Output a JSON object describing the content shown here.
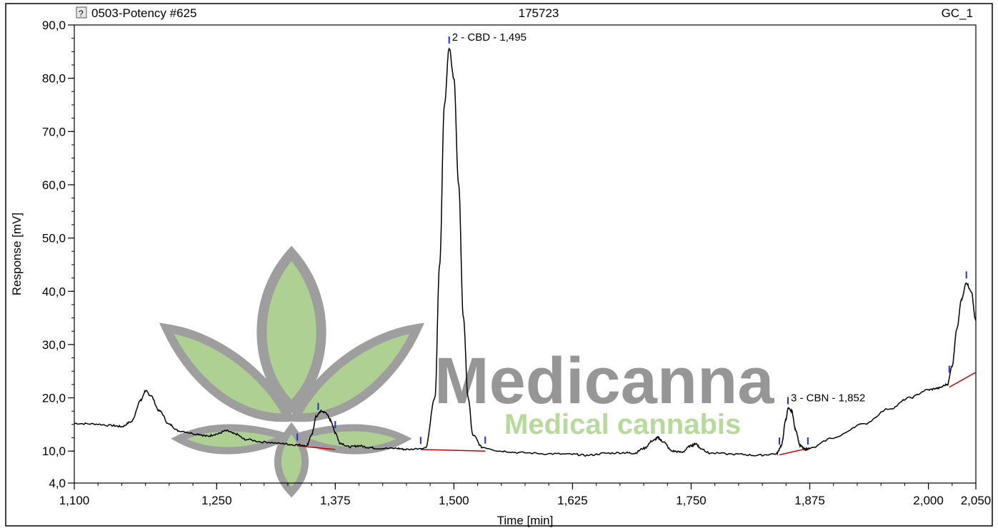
{
  "header": {
    "title": "0503-Potency #625",
    "center": "175723",
    "right": "GC_1"
  },
  "watermark": {
    "brand": "Medicanna",
    "tagline": "Medical cannabis"
  },
  "chart_data": {
    "type": "line",
    "xlabel": "Time [min]",
    "ylabel": "Response [mV]",
    "xlim": [
      1.1,
      2.05
    ],
    "ylim": [
      4.0,
      90.0
    ],
    "x_ticks": [
      "1,100",
      "1,250",
      "1,375",
      "1,500",
      "1,625",
      "1,750",
      "1,875",
      "2,000",
      "2,050"
    ],
    "x_tick_values": [
      1.1,
      1.25,
      1.375,
      1.5,
      1.625,
      1.75,
      1.875,
      2.0,
      2.05
    ],
    "y_ticks": [
      "4,0",
      "10,0",
      "20,0",
      "30,0",
      "40,0",
      "50,0",
      "60,0",
      "70,0",
      "80,0",
      "90,0"
    ],
    "y_tick_values": [
      4,
      10,
      20,
      30,
      40,
      50,
      60,
      70,
      80,
      90
    ],
    "series": [
      {
        "color": "#000000",
        "points": [
          [
            1.1,
            15.2
          ],
          [
            1.12,
            15.1
          ],
          [
            1.14,
            14.8
          ],
          [
            1.15,
            14.6
          ],
          [
            1.16,
            15.5
          ],
          [
            1.17,
            19.5
          ],
          [
            1.175,
            21.3
          ],
          [
            1.18,
            20.5
          ],
          [
            1.19,
            17.5
          ],
          [
            1.2,
            15.0
          ],
          [
            1.21,
            13.8
          ],
          [
            1.23,
            13.2
          ],
          [
            1.24,
            12.8
          ],
          [
            1.25,
            13.2
          ],
          [
            1.26,
            13.8
          ],
          [
            1.27,
            13.2
          ],
          [
            1.28,
            12.2
          ],
          [
            1.3,
            11.7
          ],
          [
            1.32,
            11.4
          ],
          [
            1.33,
            11.2
          ],
          [
            1.345,
            11.1
          ],
          [
            1.35,
            13.0
          ],
          [
            1.355,
            16.5
          ],
          [
            1.36,
            17.5
          ],
          [
            1.365,
            17.2
          ],
          [
            1.37,
            15.8
          ],
          [
            1.375,
            13.5
          ],
          [
            1.38,
            11.5
          ],
          [
            1.39,
            10.8
          ],
          [
            1.4,
            11.0
          ],
          [
            1.41,
            10.7
          ],
          [
            1.42,
            10.5
          ],
          [
            1.44,
            10.5
          ],
          [
            1.45,
            10.3
          ],
          [
            1.47,
            10.6
          ],
          [
            1.48,
            20.0
          ],
          [
            1.485,
            45.0
          ],
          [
            1.49,
            75.0
          ],
          [
            1.495,
            85.7
          ],
          [
            1.5,
            80.0
          ],
          [
            1.505,
            60.0
          ],
          [
            1.51,
            35.0
          ],
          [
            1.515,
            20.0
          ],
          [
            1.52,
            13.0
          ],
          [
            1.53,
            10.7
          ],
          [
            1.55,
            10.0
          ],
          [
            1.57,
            9.7
          ],
          [
            1.6,
            9.5
          ],
          [
            1.625,
            9.4
          ],
          [
            1.64,
            9.2
          ],
          [
            1.66,
            9.6
          ],
          [
            1.68,
            9.7
          ],
          [
            1.69,
            9.6
          ],
          [
            1.7,
            10.5
          ],
          [
            1.71,
            12.0
          ],
          [
            1.715,
            12.5
          ],
          [
            1.72,
            11.8
          ],
          [
            1.73,
            10.0
          ],
          [
            1.74,
            9.8
          ],
          [
            1.75,
            11.0
          ],
          [
            1.755,
            11.4
          ],
          [
            1.76,
            10.5
          ],
          [
            1.77,
            9.6
          ],
          [
            1.8,
            9.4
          ],
          [
            1.82,
            9.2
          ],
          [
            1.84,
            9.5
          ],
          [
            1.845,
            11.0
          ],
          [
            1.85,
            16.0
          ],
          [
            1.852,
            18.0
          ],
          [
            1.856,
            17.5
          ],
          [
            1.86,
            14.0
          ],
          [
            1.865,
            11.0
          ],
          [
            1.87,
            10.3
          ],
          [
            1.875,
            10.5
          ],
          [
            1.9,
            12.5
          ],
          [
            1.93,
            15.0
          ],
          [
            1.96,
            18.0
          ],
          [
            1.98,
            20.0
          ],
          [
            2.0,
            21.5
          ],
          [
            2.01,
            21.8
          ],
          [
            2.02,
            22.5
          ],
          [
            2.025,
            26.0
          ],
          [
            2.03,
            33.0
          ],
          [
            2.035,
            38.5
          ],
          [
            2.04,
            41.6
          ],
          [
            2.045,
            40.0
          ],
          [
            2.05,
            34.5
          ]
        ]
      }
    ],
    "baselines": {
      "color": "#c00000",
      "segments": [
        [
          [
            1.335,
            11.0
          ],
          [
            1.375,
            10.3
          ]
        ],
        [
          [
            1.465,
            10.3
          ],
          [
            1.533,
            10.0
          ]
        ],
        [
          [
            1.843,
            9.3
          ],
          [
            1.873,
            10.5
          ]
        ],
        [
          [
            2.022,
            22.0
          ],
          [
            2.05,
            24.8
          ]
        ]
      ]
    },
    "peak_marks": {
      "color": "#2030d0",
      "values": [
        1.335,
        1.357,
        1.375,
        1.465,
        1.495,
        1.533,
        1.843,
        1.852,
        1.873,
        2.022,
        2.04
      ]
    },
    "annotations": [
      {
        "text": "2 - CBD - 1,495",
        "x": 1.495,
        "y": 85.7
      },
      {
        "text": "3 - CBN - 1,852",
        "x": 1.852,
        "y": 18.0
      }
    ]
  }
}
